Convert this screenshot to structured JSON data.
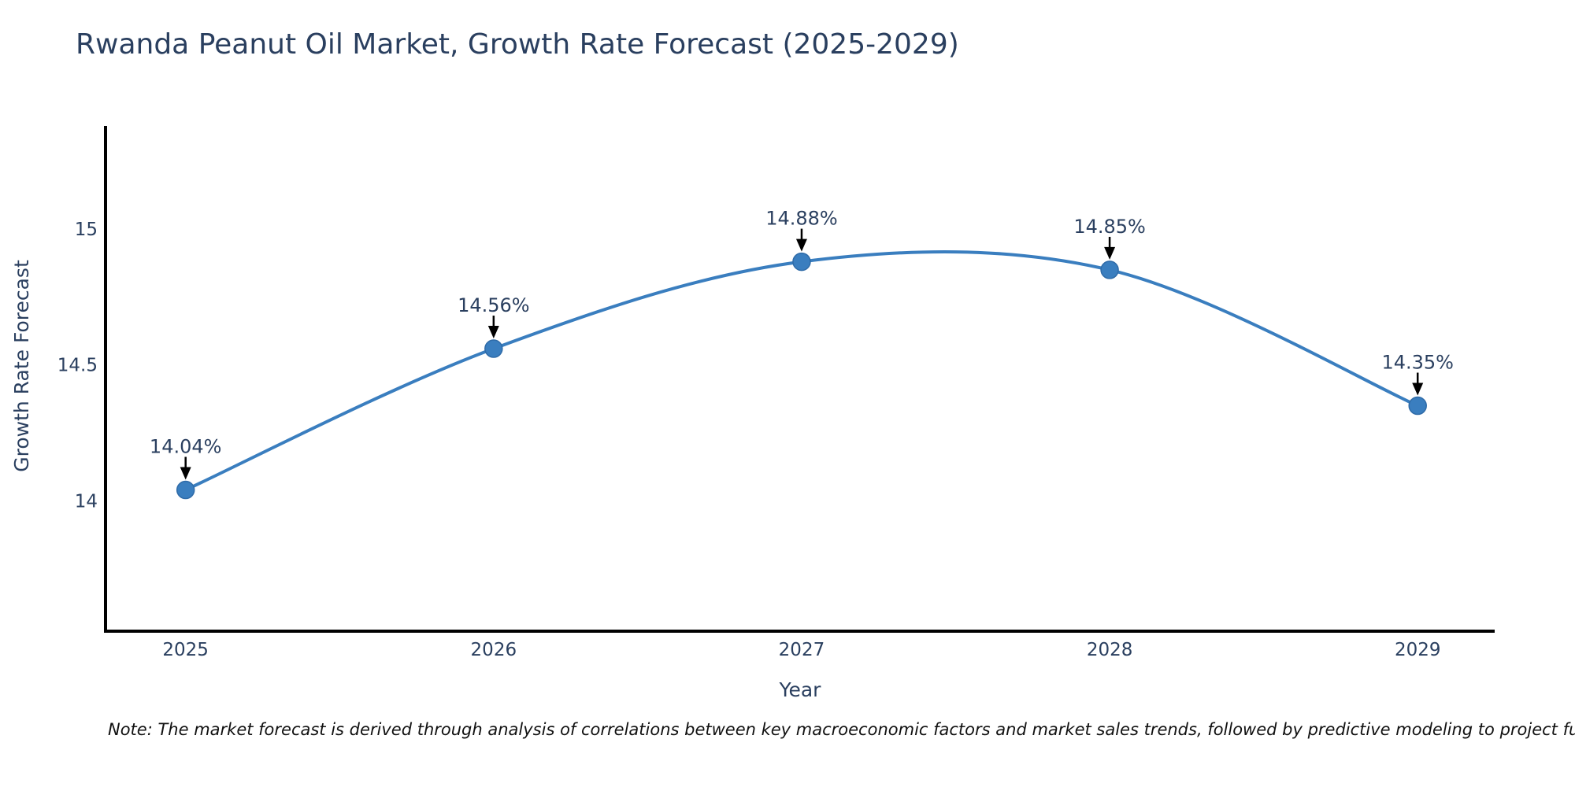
{
  "chart": {
    "title": "Rwanda Peanut Oil Market, Growth Rate Forecast (2025-2029)",
    "xlabel": "Year",
    "ylabel": "Growth Rate Forecast",
    "note": "Note: The market forecast is derived through analysis of correlations between key macroeconomic factors and market sales trends, followed by predictive modeling to project future sal"
  },
  "chart_data": {
    "type": "line",
    "title": "Rwanda Peanut Oil Market, Growth Rate Forecast (2025-2029)",
    "x": [
      2025,
      2026,
      2027,
      2028,
      2029
    ],
    "values": [
      14.04,
      14.56,
      14.88,
      14.85,
      14.35
    ],
    "point_labels": [
      "14.04%",
      "14.56%",
      "14.88%",
      "14.85%",
      "14.35%"
    ],
    "xtick_labels": [
      "2025",
      "2026",
      "2027",
      "2028",
      "2029"
    ],
    "yticks": [
      14,
      14.5,
      15
    ],
    "ytick_labels": [
      "14",
      "14.5",
      "15"
    ],
    "xlabel": "Year",
    "ylabel": "Growth Rate Forecast",
    "xlim": [
      2024.74,
      2029.25
    ],
    "ylim": [
      13.52,
      15.38
    ],
    "grid": false,
    "legend": false,
    "smooth": true,
    "line_color": "#3a7ebf",
    "marker_color": "#3a7ebf",
    "marker_edge_color": "#2f6ba8",
    "spine_color": "#000000",
    "arrow_color": "#000000",
    "text_color": "#2a3f5f"
  }
}
